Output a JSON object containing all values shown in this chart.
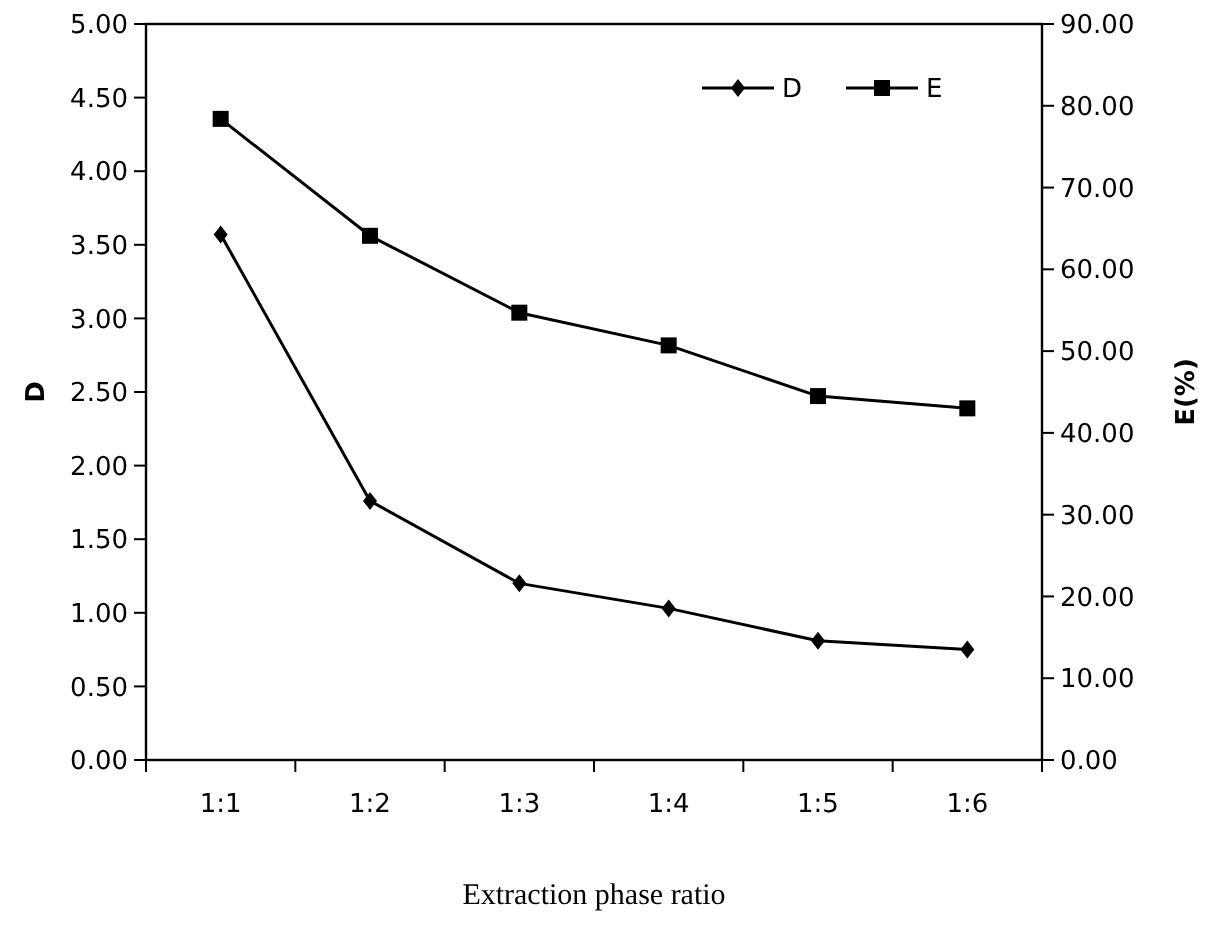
{
  "chart_data": {
    "type": "line",
    "xlabel": "Extraction phase ratio",
    "ylabel": "D",
    "y2label": "E(%)",
    "categories": [
      "1:1",
      "1:2",
      "1:3",
      "1:4",
      "1:5",
      "1:6"
    ],
    "series": [
      {
        "name": "D",
        "color": "#000000",
        "marker": "diamond",
        "values": [
          3.57,
          1.76,
          1.2,
          1.03,
          0.81,
          0.75
        ]
      },
      {
        "name": "E",
        "color": "#000000",
        "marker": "square",
        "axis": "y2",
        "values": [
          78.4,
          64.1,
          54.7,
          50.7,
          44.5,
          43.0
        ]
      }
    ],
    "ylim": [
      0,
      5
    ],
    "yticks": [
      {
        "value": 0,
        "label": "0.00"
      },
      {
        "value": 0.5,
        "label": "0.50"
      },
      {
        "value": 1,
        "label": "1.00"
      },
      {
        "value": 1.5,
        "label": "1.50"
      },
      {
        "value": 2,
        "label": "2.00"
      },
      {
        "value": 2.5,
        "label": "2.50"
      },
      {
        "value": 3,
        "label": "3.00"
      },
      {
        "value": 3.5,
        "label": "3.50"
      },
      {
        "value": 4,
        "label": "4.00"
      },
      {
        "value": 4.5,
        "label": "4.50"
      },
      {
        "value": 5,
        "label": "5.00"
      }
    ],
    "y2lim": [
      0,
      90
    ],
    "y2ticks": [
      {
        "value": 0,
        "label": "0.00"
      },
      {
        "value": 10,
        "label": "10.00"
      },
      {
        "value": 20,
        "label": "20.00"
      },
      {
        "value": 30,
        "label": "30.00"
      },
      {
        "value": 40,
        "label": "40.00"
      },
      {
        "value": 50,
        "label": "50.00"
      },
      {
        "value": 60,
        "label": "60.00"
      },
      {
        "value": 70,
        "label": "70.00"
      },
      {
        "value": 80,
        "label": "80.00"
      },
      {
        "value": 90,
        "label": "90.00"
      }
    ],
    "legend": "top right",
    "grid": false,
    "line_style": "solid"
  }
}
